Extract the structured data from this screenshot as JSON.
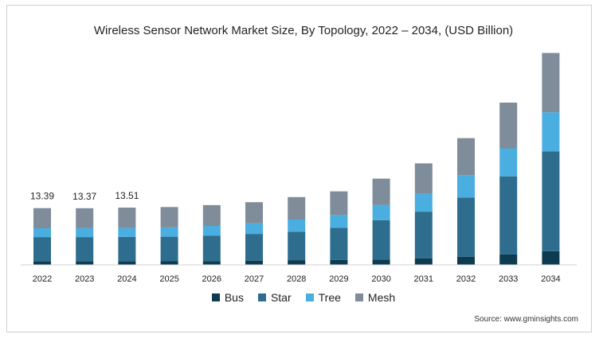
{
  "chart_data": {
    "type": "bar",
    "stacked": true,
    "title": "Wireless Sensor Network Market Size, By Topology, 2022 – 2034, (USD Billion)",
    "categories": [
      "2022",
      "2023",
      "2024",
      "2025",
      "2026",
      "2027",
      "2028",
      "2029",
      "2030",
      "2031",
      "2032",
      "2033",
      "2034"
    ],
    "series": [
      {
        "name": "Bus",
        "color": "#0d3b50",
        "values": [
          0.82,
          0.82,
          0.83,
          0.84,
          0.9,
          1.0,
          1.1,
          1.15,
          1.25,
          1.55,
          1.9,
          2.5,
          3.2
        ]
      },
      {
        "name": "Star",
        "color": "#2e6d8e",
        "values": [
          5.73,
          5.73,
          5.78,
          5.8,
          6.0,
          6.3,
          6.7,
          7.6,
          9.3,
          11.0,
          14.0,
          18.4,
          23.6
        ]
      },
      {
        "name": "Tree",
        "color": "#4aaee0",
        "values": [
          2.1,
          2.1,
          2.1,
          2.2,
          2.3,
          2.5,
          2.9,
          3.0,
          3.6,
          4.2,
          5.3,
          6.6,
          9.2
        ]
      },
      {
        "name": "Mesh",
        "color": "#7f8c99",
        "values": [
          4.74,
          4.72,
          4.8,
          4.8,
          4.9,
          5.0,
          5.3,
          5.6,
          6.2,
          7.2,
          8.7,
          10.8,
          14.0
        ]
      }
    ],
    "data_labels": [
      {
        "category": "2022",
        "text": "13.39"
      },
      {
        "category": "2023",
        "text": "13.37"
      },
      {
        "category": "2024",
        "text": "13.51"
      }
    ],
    "ylim": [
      0,
      55
    ],
    "grid": false,
    "legend_position": "bottom"
  },
  "source": "Source: www.gminsights.com"
}
